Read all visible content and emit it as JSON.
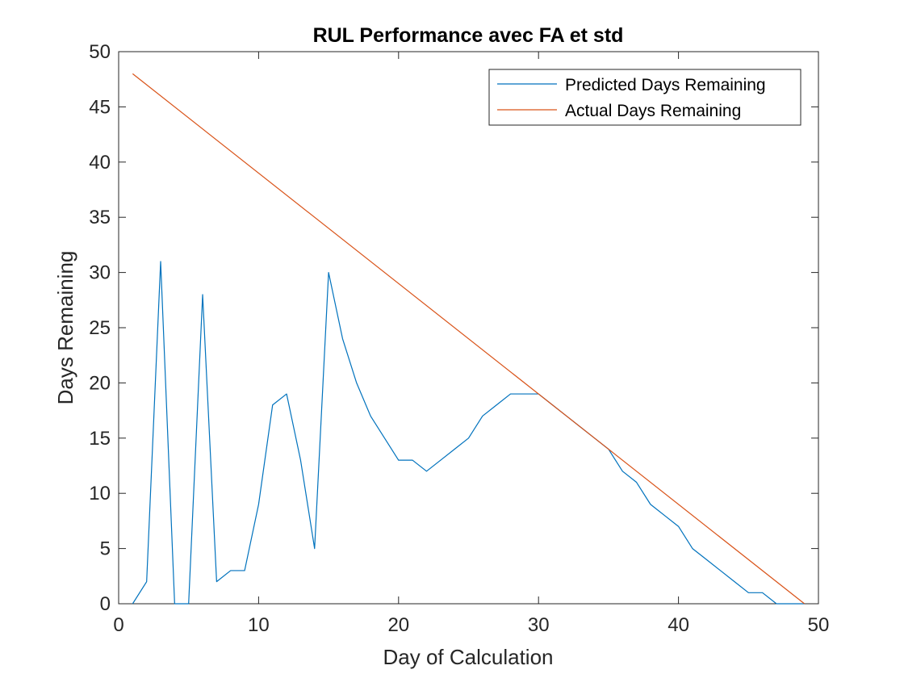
{
  "chart_data": {
    "type": "line",
    "title": "RUL Performance avec FA et std",
    "xlabel": "Day of Calculation",
    "ylabel": "Days Remaining",
    "xlim": [
      0,
      50
    ],
    "ylim": [
      0,
      50
    ],
    "xticks": [
      "0",
      "10",
      "20",
      "30",
      "40",
      "50"
    ],
    "yticks": [
      "0",
      "5",
      "10",
      "15",
      "20",
      "25",
      "30",
      "35",
      "40",
      "45",
      "50"
    ],
    "grid": false,
    "legend_position": "top-right",
    "series": [
      {
        "name": "Predicted Days Remaining",
        "color": "#0072BD",
        "x": [
          1,
          2,
          3,
          4,
          5,
          6,
          7,
          8,
          9,
          10,
          11,
          12,
          13,
          14,
          15,
          16,
          17,
          18,
          19,
          20,
          21,
          22,
          23,
          24,
          25,
          26,
          27,
          28,
          29,
          30,
          31,
          32,
          33,
          34,
          35,
          36,
          37,
          38,
          39,
          40,
          41,
          42,
          43,
          44,
          45,
          46,
          47,
          48,
          49
        ],
        "y": [
          0,
          2,
          31,
          0,
          0,
          28,
          2,
          3,
          3,
          9,
          18,
          19,
          13,
          5,
          30,
          24,
          20,
          17,
          15,
          13,
          13,
          12,
          13,
          14,
          15,
          17,
          18,
          19,
          19,
          19,
          18,
          17,
          16,
          15,
          14,
          12,
          11,
          9,
          8,
          7,
          5,
          4,
          3,
          2,
          1,
          1,
          0,
          0,
          0
        ]
      },
      {
        "name": "Actual Days Remaining",
        "color": "#D95319",
        "x": [
          1,
          49
        ],
        "y": [
          48,
          0
        ]
      }
    ]
  }
}
